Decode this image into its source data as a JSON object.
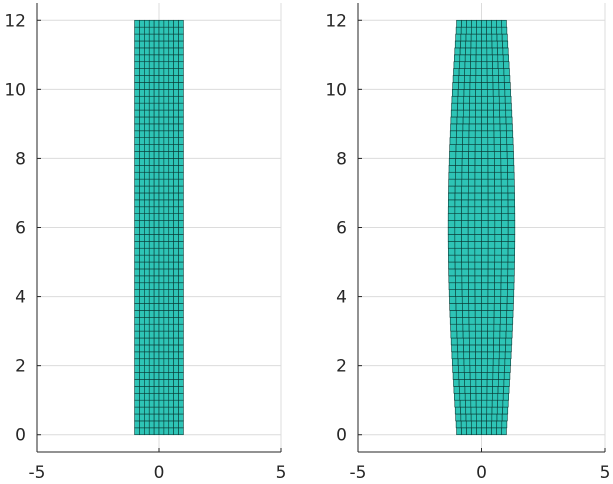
{
  "chart_data": [
    {
      "type": "mesh",
      "shape": "straight",
      "xlim": [
        -5,
        5
      ],
      "ylim": [
        -0.5,
        12.5
      ],
      "xticks": [
        -5,
        0,
        5
      ],
      "yticks": [
        0,
        2,
        4,
        6,
        8,
        10,
        12
      ],
      "grid": true,
      "mesh_x_range": [
        -1,
        1
      ],
      "mesh_y_range": [
        0,
        12
      ],
      "columns": 10,
      "rows": 60,
      "fill_color": "#2ec4b6",
      "edge_color": "#0b3b36"
    },
    {
      "type": "mesh",
      "shape": "bulged",
      "xlim": [
        -5,
        5
      ],
      "ylim": [
        -0.5,
        12.5
      ],
      "xticks": [
        -5,
        0,
        5
      ],
      "yticks": [
        0,
        2,
        4,
        6,
        8,
        10,
        12
      ],
      "grid": true,
      "mesh_x_range_ends": [
        -1,
        1
      ],
      "mesh_x_range_middle": [
        -1.35,
        1.35
      ],
      "mesh_y_range": [
        0,
        12
      ],
      "columns": 10,
      "rows": 60,
      "fill_color": "#2ec4b6",
      "edge_color": "#0b3b36"
    }
  ]
}
